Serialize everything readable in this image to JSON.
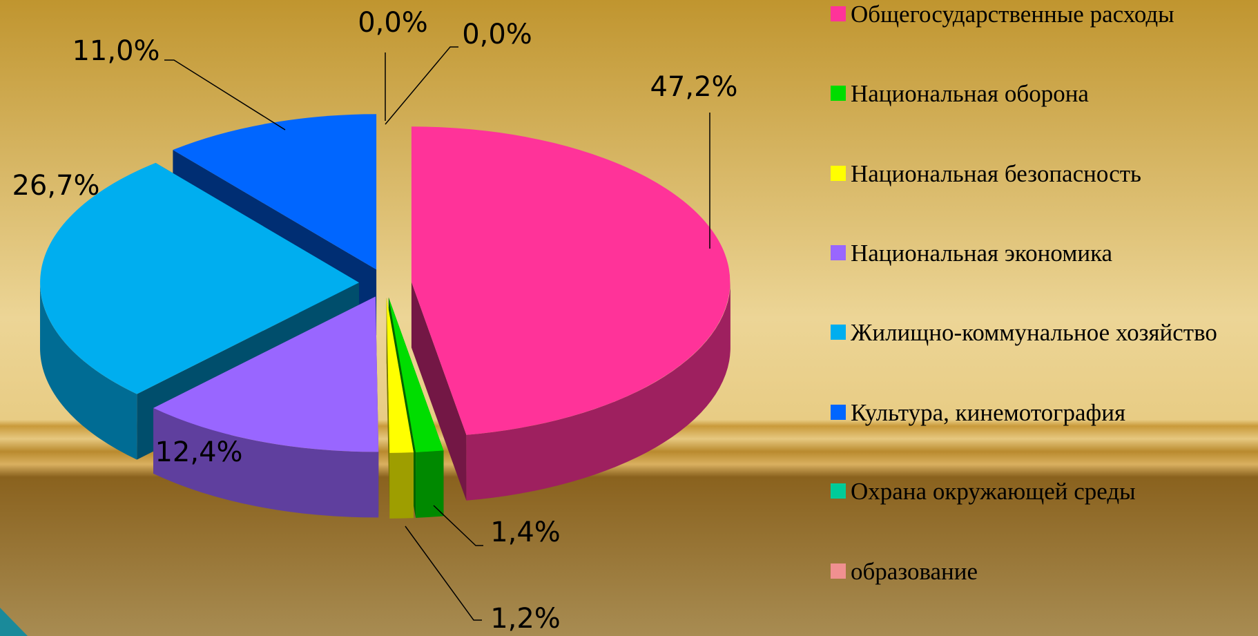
{
  "chart_data": {
    "type": "pie",
    "categories": [
      "Общегосударственные расходы",
      "Национальная оборона",
      "Национальная безопасность",
      "Национальная экономика",
      "Жилищно-коммунальное хозяйство",
      "Культура, кинемотография",
      "Охрана окружающей среды",
      "образование"
    ],
    "values": [
      47.2,
      1.4,
      1.2,
      12.4,
      26.7,
      11.0,
      0.0,
      0.0
    ],
    "value_labels": [
      "47,2%",
      "1,4%",
      "1,2%",
      "12,4%",
      "26,7%",
      "11,0%",
      "0,0%",
      "0,0%"
    ],
    "colors": [
      "#ff3399",
      "#00dd00",
      "#ffff00",
      "#9966ff",
      "#00aeef",
      "#0066ff",
      "#00cc99",
      "#f09090"
    ],
    "legend": "right"
  }
}
